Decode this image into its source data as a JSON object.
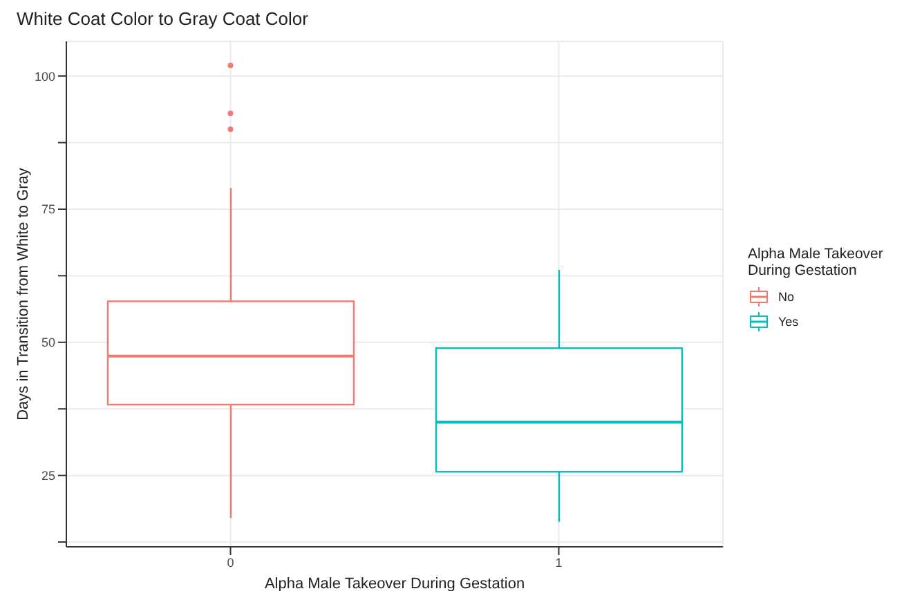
{
  "chart_data": {
    "type": "box",
    "title": "White Coat Color to Gray Coat Color",
    "xlabel": "Alpha Male Takeover During Gestation",
    "ylabel": "Days in Transition from White to Gray",
    "legend_title": "Alpha Male Takeover During Gestation",
    "categories": [
      "0",
      "1"
    ],
    "series": [
      {
        "name": "No",
        "color": "#f8766d",
        "boxes": [
          {
            "low": 17,
            "q1": 38.3,
            "median": 47.4,
            "q3": 57.7,
            "high": 79,
            "outliers": [
              102,
              93,
              90
            ]
          },
          null
        ]
      },
      {
        "name": "Yes",
        "color": "#00bfc4",
        "boxes": [
          null,
          {
            "low": 16.3,
            "q1": 25.7,
            "median": 35,
            "q3": 48.9,
            "high": 63.6
          }
        ]
      }
    ],
    "ylim": [
      11.6,
      106.5
    ],
    "yticks": [
      {
        "value": 12.5,
        "label": null
      },
      25,
      {
        "value": 37.5,
        "label": null
      },
      50,
      {
        "value": 62.5,
        "label": null
      },
      75,
      {
        "value": 87.5,
        "label": null
      },
      100
    ],
    "grid": true,
    "legend": "right"
  }
}
